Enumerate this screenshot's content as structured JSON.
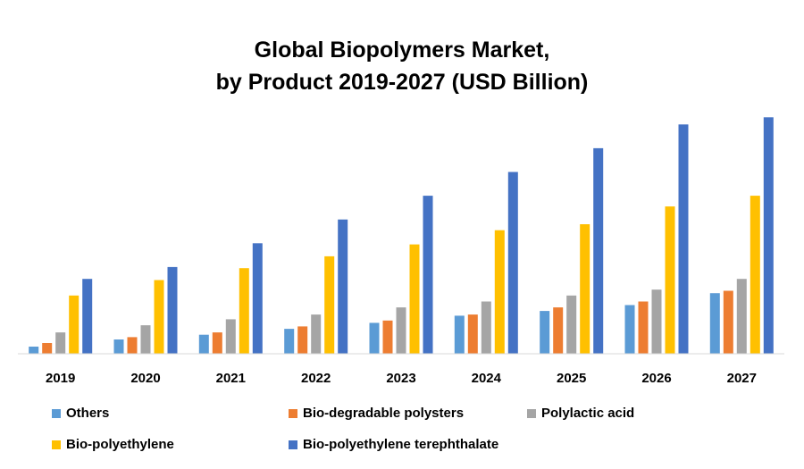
{
  "chart_data": {
    "type": "bar",
    "title": "Global Biopolymers Market,",
    "subtitle": "by Product 2019-2027 (USD Billion)",
    "categories": [
      "2019",
      "2020",
      "2021",
      "2022",
      "2023",
      "2024",
      "2025",
      "2026",
      "2027"
    ],
    "series": [
      {
        "name": "Others",
        "color": "#5B9BD5",
        "values": [
          0.3,
          0.6,
          0.8,
          1.05,
          1.3,
          1.6,
          1.8,
          2.05,
          2.55
        ]
      },
      {
        "name": "Bio-degradable polysters",
        "color": "#ED7D31",
        "values": [
          0.45,
          0.7,
          0.9,
          1.15,
          1.4,
          1.65,
          1.95,
          2.2,
          2.65
        ]
      },
      {
        "name": "Polylactic acid",
        "color": "#A5A5A5",
        "values": [
          0.9,
          1.2,
          1.45,
          1.65,
          1.95,
          2.2,
          2.45,
          2.7,
          3.15
        ]
      },
      {
        "name": "Bio-polyethylene",
        "color": "#FFC000",
        "values": [
          2.45,
          3.1,
          3.6,
          4.1,
          4.6,
          5.2,
          5.45,
          6.2,
          6.65
        ]
      },
      {
        "name": "Bio-polyethylene terephthalate",
        "color": "#4472C4",
        "values": [
          3.15,
          3.65,
          4.65,
          5.65,
          6.65,
          7.65,
          8.65,
          9.65,
          9.95
        ]
      }
    ],
    "ylim": [
      0,
      10
    ],
    "grid": false,
    "legend": "bottom"
  }
}
